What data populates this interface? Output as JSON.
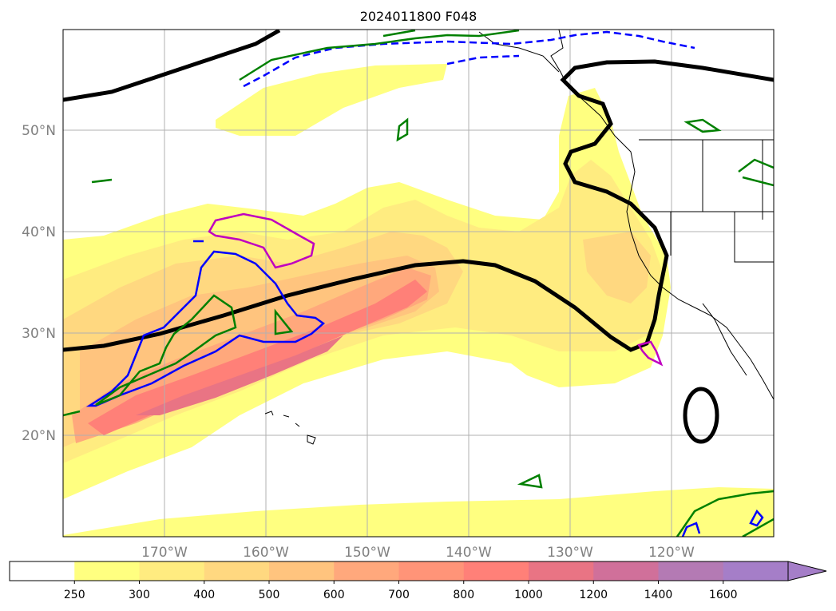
{
  "title": "2024011800 F048",
  "lat_labels": [
    "50°N",
    "40°N",
    "30°N",
    "20°N"
  ],
  "lon_labels": [
    "170°W",
    "160°W",
    "150°W",
    "140°W",
    "130°W",
    "120°W"
  ],
  "colorbar": {
    "ticks": [
      "250",
      "300",
      "400",
      "500",
      "600",
      "700",
      "800",
      "1000",
      "1200",
      "1400",
      "1600"
    ],
    "colors": [
      "#ffffff",
      "#ffff80",
      "#ffec80",
      "#ffd880",
      "#ffc47e",
      "#ffa87c",
      "#ff9478",
      "#ff8078",
      "#e97484",
      "#d0709a",
      "#b47ab4",
      "#a57ec8"
    ]
  },
  "legend_colors": {
    "jet": "#000000",
    "blue_contour": "#0000ff",
    "green_contour": "#008000",
    "magenta_contour": "#c000c0"
  }
}
